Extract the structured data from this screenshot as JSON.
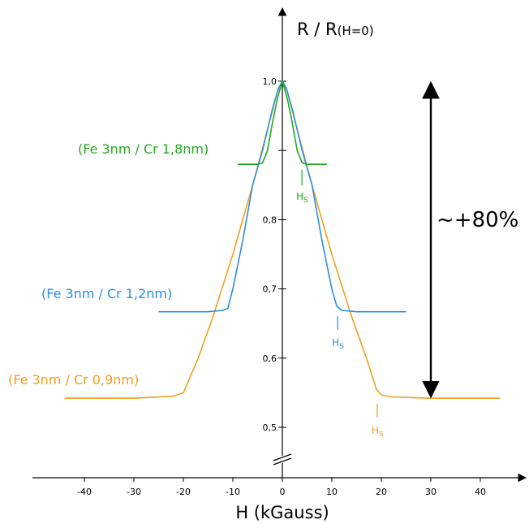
{
  "chart_data": {
    "type": "line",
    "title": "",
    "xlabel": "H (kGauss)",
    "ylabel_main": "R / R",
    "ylabel_sub": "(H=0)",
    "xlim": [
      -44,
      46
    ],
    "ylim": [
      0.46,
      1.0
    ],
    "x_ticks": [
      -40,
      -30,
      -20,
      -10,
      0,
      10,
      20,
      30,
      40
    ],
    "x_tick_labels": [
      "-40",
      "-30",
      "-20",
      "-10",
      "0",
      "10",
      "20",
      "30",
      "40"
    ],
    "y_ticks": [
      0.5,
      0.6,
      0.7,
      0.8,
      0.9,
      1.0
    ],
    "y_tick_labels": [
      "0,5",
      "0,6",
      "0,7",
      "0,8",
      "",
      "1,0"
    ],
    "axis_break": true,
    "grid": false,
    "series": [
      {
        "name": "(Fe 3nm / Cr 0,9nm)",
        "color": "#f0a020",
        "points": [
          [
            -44,
            0.542
          ],
          [
            -30,
            0.542
          ],
          [
            -22,
            0.545
          ],
          [
            -20,
            0.55
          ],
          [
            -17,
            0.6
          ],
          [
            -14,
            0.66
          ],
          [
            -10,
            0.75
          ],
          [
            -6,
            0.85
          ],
          [
            -3,
            0.93
          ],
          [
            -1,
            0.985
          ],
          [
            0,
            1.0
          ],
          [
            1,
            0.985
          ],
          [
            3,
            0.93
          ],
          [
            6,
            0.85
          ],
          [
            10,
            0.75
          ],
          [
            14,
            0.66
          ],
          [
            17,
            0.6
          ],
          [
            19,
            0.555
          ],
          [
            20,
            0.547
          ],
          [
            22,
            0.544
          ],
          [
            30,
            0.542
          ],
          [
            44,
            0.542
          ]
        ],
        "hs_x": 19,
        "hs_label": "H",
        "hs_sub": "S"
      },
      {
        "name": "(Fe 3nm / Cr 1,2nm)",
        "color": "#2b8fde",
        "points": [
          [
            -25,
            0.667
          ],
          [
            -15,
            0.667
          ],
          [
            -12,
            0.669
          ],
          [
            -11,
            0.672
          ],
          [
            -10,
            0.7
          ],
          [
            -8,
            0.77
          ],
          [
            -6,
            0.85
          ],
          [
            -4,
            0.9
          ],
          [
            -2,
            0.96
          ],
          [
            -0.8,
            0.99
          ],
          [
            0,
            1.0
          ],
          [
            0.8,
            0.99
          ],
          [
            2,
            0.96
          ],
          [
            4,
            0.9
          ],
          [
            6,
            0.85
          ],
          [
            8,
            0.77
          ],
          [
            10,
            0.7
          ],
          [
            11,
            0.675
          ],
          [
            12,
            0.669
          ],
          [
            15,
            0.667
          ],
          [
            25,
            0.667
          ]
        ],
        "hs_x": 11,
        "hs_label": "H",
        "hs_sub": "S"
      },
      {
        "name": "(Fe 3nm / Cr 1,8nm)",
        "color": "#22aa22",
        "points": [
          [
            -9,
            0.88
          ],
          [
            -5,
            0.88
          ],
          [
            -4,
            0.882
          ],
          [
            -3,
            0.9
          ],
          [
            -2,
            0.94
          ],
          [
            -1,
            0.975
          ],
          [
            0,
            1.0
          ],
          [
            1,
            0.975
          ],
          [
            2,
            0.94
          ],
          [
            3,
            0.9
          ],
          [
            4,
            0.882
          ],
          [
            5,
            0.88
          ],
          [
            9,
            0.88
          ]
        ],
        "hs_x": 3.8,
        "hs_label": "H",
        "hs_sub": "S"
      }
    ],
    "annotation": {
      "text": "~+80%",
      "x": 30,
      "y_from": 0.542,
      "y_to": 1.0
    }
  }
}
